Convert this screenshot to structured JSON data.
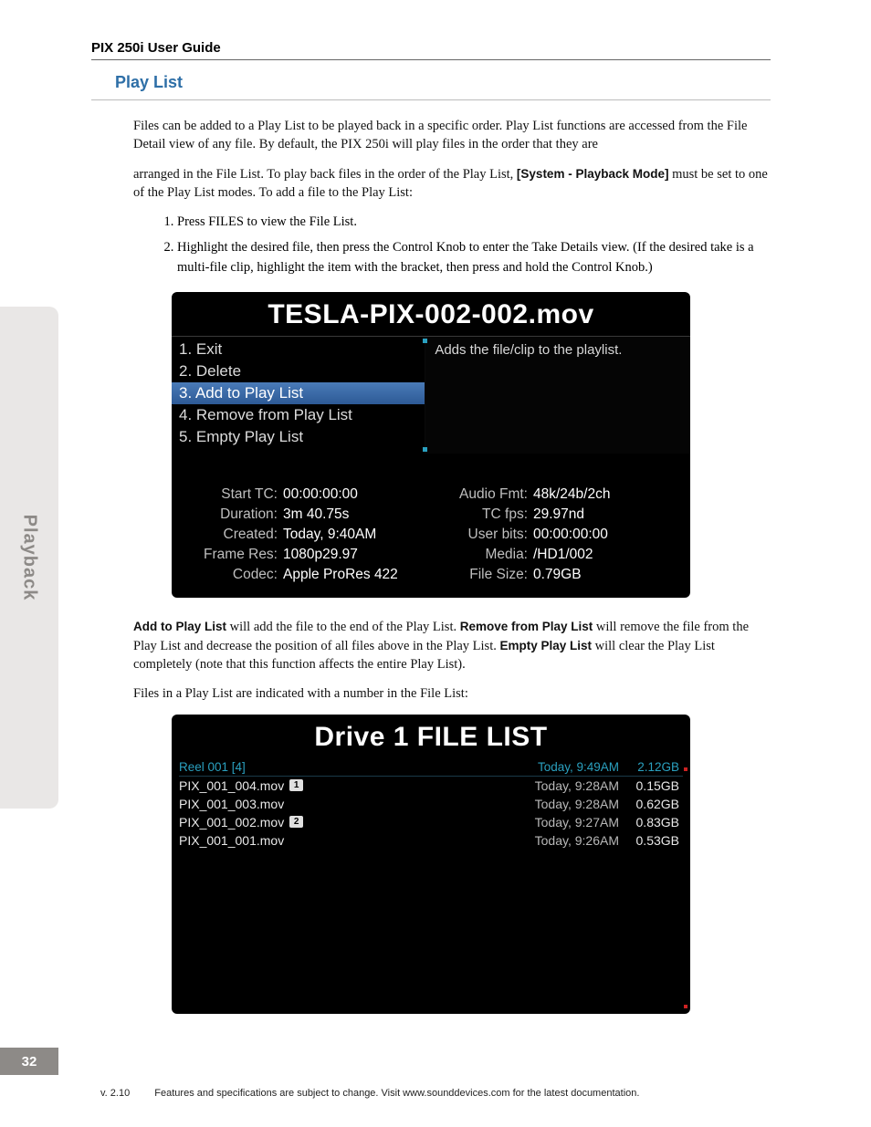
{
  "header": {
    "title": "PIX 250i User Guide"
  },
  "section": {
    "title": "Play List"
  },
  "paragraphs": {
    "intro1": "Files can be added to a Play List to be played back in a specific order. Play List functions are accessed from the File Detail view of any file. By default, the PIX 250i will play files in the order that they are",
    "intro2a": "arranged in the File List. To play back files in the order of the Play List, ",
    "intro2b_bold": "[System - Playback Mode]",
    "intro2c": " must be set to one of the Play List modes. To add a file to the Play List:",
    "step1": "Press FILES to view the File List.",
    "step2": "Highlight the desired file, then press the Control Knob to enter the Take Details view. (If the desired take is a multi-file clip, highlight the item with the bracket, then press and hold the Control Knob.)",
    "para2_a_bold": "Add to Play List",
    "para2_a": " will add the file to the end of the Play List. ",
    "para2_b_bold": "Remove from Play List",
    "para2_b": " will remove the file from the Play List and decrease the position of all files above in the Play List. ",
    "para2_c_bold": "Empty Play List",
    "para2_c": " will clear the Play List completely (note that this function affects the entire Play List).",
    "para3": "Files in a Play List are indicated with a number in the File List:"
  },
  "shot1": {
    "title": "TESLA-PIX-002-002.mov",
    "menu": [
      "1. Exit",
      "2. Delete",
      "3. Add to Play List",
      "4. Remove from Play List",
      "5. Empty Play List"
    ],
    "selected_index": 2,
    "description": "Adds the file/clip to the playlist.",
    "details_left": [
      {
        "label": "Start TC:",
        "value": "00:00:00:00"
      },
      {
        "label": "Duration:",
        "value": "3m 40.75s"
      },
      {
        "label": "Created:",
        "value": "Today, 9:40AM"
      },
      {
        "label": "Frame Res:",
        "value": "1080p29.97"
      },
      {
        "label": "Codec:",
        "value": "Apple ProRes 422"
      }
    ],
    "details_right": [
      {
        "label": "Audio Fmt:",
        "value": "48k/24b/2ch"
      },
      {
        "label": "TC fps:",
        "value": "29.97nd"
      },
      {
        "label": "User bits:",
        "value": "00:00:00:00"
      },
      {
        "label": "Media:",
        "value": "/HD1/002"
      },
      {
        "label": "File Size:",
        "value": "0.79GB"
      }
    ]
  },
  "shot2": {
    "title": "Drive 1 FILE LIST",
    "header": {
      "name": "Reel 001 [4]",
      "time": "Today, 9:49AM",
      "size": "2.12GB"
    },
    "rows": [
      {
        "name": "PIX_001_004.mov",
        "badge": "1",
        "time": "Today, 9:28AM",
        "size": "0.15GB"
      },
      {
        "name": "PIX_001_003.mov",
        "badge": "",
        "time": "Today, 9:28AM",
        "size": "0.62GB"
      },
      {
        "name": "PIX_001_002.mov",
        "badge": "2",
        "time": "Today, 9:27AM",
        "size": "0.83GB"
      },
      {
        "name": "PIX_001_001.mov",
        "badge": "",
        "time": "Today, 9:26AM",
        "size": "0.53GB"
      }
    ]
  },
  "sidebar": {
    "label": "Playback"
  },
  "page_number": "32",
  "footer": {
    "version": "v. 2.10",
    "text": "Features and specifications are subject to change. Visit www.sounddevices.com for the latest documentation."
  },
  "colors": {
    "section_title": "#2e6fa7",
    "sidebar_bg": "#e9e7e6",
    "sidebar_text": "#8d8a87",
    "shot_bg": "#000000",
    "menu_sel_top": "#4a7bb8",
    "menu_sel_bot": "#2d5a96",
    "accent_cyan": "#2aa0bf"
  }
}
